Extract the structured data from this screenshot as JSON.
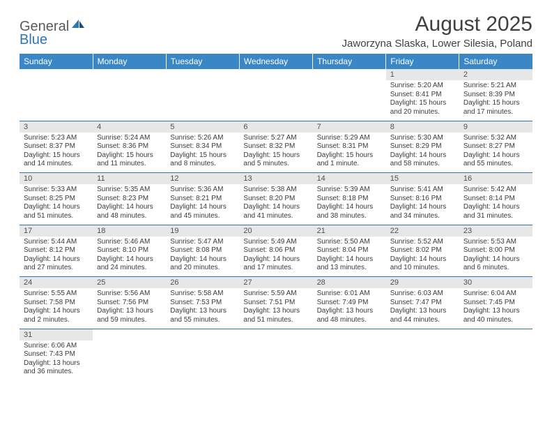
{
  "brand": {
    "general": "General",
    "blue": "Blue"
  },
  "title": "August 2025",
  "subtitle": "Jaworzyna Slaska, Lower Silesia, Poland",
  "colors": {
    "header_bg": "#3a87c8",
    "header_text": "#ffffff",
    "daynum_bg": "#e7e7e7",
    "border": "#2e75b6",
    "text": "#3a3a3a",
    "logo_general": "#5a5a5a",
    "logo_blue": "#2e75b6"
  },
  "dow": [
    "Sunday",
    "Monday",
    "Tuesday",
    "Wednesday",
    "Thursday",
    "Friday",
    "Saturday"
  ],
  "weeks": [
    [
      null,
      null,
      null,
      null,
      null,
      {
        "n": "1",
        "sr": "Sunrise: 5:20 AM",
        "ss": "Sunset: 8:41 PM",
        "d1": "Daylight: 15 hours",
        "d2": "and 20 minutes."
      },
      {
        "n": "2",
        "sr": "Sunrise: 5:21 AM",
        "ss": "Sunset: 8:39 PM",
        "d1": "Daylight: 15 hours",
        "d2": "and 17 minutes."
      }
    ],
    [
      {
        "n": "3",
        "sr": "Sunrise: 5:23 AM",
        "ss": "Sunset: 8:37 PM",
        "d1": "Daylight: 15 hours",
        "d2": "and 14 minutes."
      },
      {
        "n": "4",
        "sr": "Sunrise: 5:24 AM",
        "ss": "Sunset: 8:36 PM",
        "d1": "Daylight: 15 hours",
        "d2": "and 11 minutes."
      },
      {
        "n": "5",
        "sr": "Sunrise: 5:26 AM",
        "ss": "Sunset: 8:34 PM",
        "d1": "Daylight: 15 hours",
        "d2": "and 8 minutes."
      },
      {
        "n": "6",
        "sr": "Sunrise: 5:27 AM",
        "ss": "Sunset: 8:32 PM",
        "d1": "Daylight: 15 hours",
        "d2": "and 5 minutes."
      },
      {
        "n": "7",
        "sr": "Sunrise: 5:29 AM",
        "ss": "Sunset: 8:31 PM",
        "d1": "Daylight: 15 hours",
        "d2": "and 1 minute."
      },
      {
        "n": "8",
        "sr": "Sunrise: 5:30 AM",
        "ss": "Sunset: 8:29 PM",
        "d1": "Daylight: 14 hours",
        "d2": "and 58 minutes."
      },
      {
        "n": "9",
        "sr": "Sunrise: 5:32 AM",
        "ss": "Sunset: 8:27 PM",
        "d1": "Daylight: 14 hours",
        "d2": "and 55 minutes."
      }
    ],
    [
      {
        "n": "10",
        "sr": "Sunrise: 5:33 AM",
        "ss": "Sunset: 8:25 PM",
        "d1": "Daylight: 14 hours",
        "d2": "and 51 minutes."
      },
      {
        "n": "11",
        "sr": "Sunrise: 5:35 AM",
        "ss": "Sunset: 8:23 PM",
        "d1": "Daylight: 14 hours",
        "d2": "and 48 minutes."
      },
      {
        "n": "12",
        "sr": "Sunrise: 5:36 AM",
        "ss": "Sunset: 8:21 PM",
        "d1": "Daylight: 14 hours",
        "d2": "and 45 minutes."
      },
      {
        "n": "13",
        "sr": "Sunrise: 5:38 AM",
        "ss": "Sunset: 8:20 PM",
        "d1": "Daylight: 14 hours",
        "d2": "and 41 minutes."
      },
      {
        "n": "14",
        "sr": "Sunrise: 5:39 AM",
        "ss": "Sunset: 8:18 PM",
        "d1": "Daylight: 14 hours",
        "d2": "and 38 minutes."
      },
      {
        "n": "15",
        "sr": "Sunrise: 5:41 AM",
        "ss": "Sunset: 8:16 PM",
        "d1": "Daylight: 14 hours",
        "d2": "and 34 minutes."
      },
      {
        "n": "16",
        "sr": "Sunrise: 5:42 AM",
        "ss": "Sunset: 8:14 PM",
        "d1": "Daylight: 14 hours",
        "d2": "and 31 minutes."
      }
    ],
    [
      {
        "n": "17",
        "sr": "Sunrise: 5:44 AM",
        "ss": "Sunset: 8:12 PM",
        "d1": "Daylight: 14 hours",
        "d2": "and 27 minutes."
      },
      {
        "n": "18",
        "sr": "Sunrise: 5:46 AM",
        "ss": "Sunset: 8:10 PM",
        "d1": "Daylight: 14 hours",
        "d2": "and 24 minutes."
      },
      {
        "n": "19",
        "sr": "Sunrise: 5:47 AM",
        "ss": "Sunset: 8:08 PM",
        "d1": "Daylight: 14 hours",
        "d2": "and 20 minutes."
      },
      {
        "n": "20",
        "sr": "Sunrise: 5:49 AM",
        "ss": "Sunset: 8:06 PM",
        "d1": "Daylight: 14 hours",
        "d2": "and 17 minutes."
      },
      {
        "n": "21",
        "sr": "Sunrise: 5:50 AM",
        "ss": "Sunset: 8:04 PM",
        "d1": "Daylight: 14 hours",
        "d2": "and 13 minutes."
      },
      {
        "n": "22",
        "sr": "Sunrise: 5:52 AM",
        "ss": "Sunset: 8:02 PM",
        "d1": "Daylight: 14 hours",
        "d2": "and 10 minutes."
      },
      {
        "n": "23",
        "sr": "Sunrise: 5:53 AM",
        "ss": "Sunset: 8:00 PM",
        "d1": "Daylight: 14 hours",
        "d2": "and 6 minutes."
      }
    ],
    [
      {
        "n": "24",
        "sr": "Sunrise: 5:55 AM",
        "ss": "Sunset: 7:58 PM",
        "d1": "Daylight: 14 hours",
        "d2": "and 2 minutes."
      },
      {
        "n": "25",
        "sr": "Sunrise: 5:56 AM",
        "ss": "Sunset: 7:56 PM",
        "d1": "Daylight: 13 hours",
        "d2": "and 59 minutes."
      },
      {
        "n": "26",
        "sr": "Sunrise: 5:58 AM",
        "ss": "Sunset: 7:53 PM",
        "d1": "Daylight: 13 hours",
        "d2": "and 55 minutes."
      },
      {
        "n": "27",
        "sr": "Sunrise: 5:59 AM",
        "ss": "Sunset: 7:51 PM",
        "d1": "Daylight: 13 hours",
        "d2": "and 51 minutes."
      },
      {
        "n": "28",
        "sr": "Sunrise: 6:01 AM",
        "ss": "Sunset: 7:49 PM",
        "d1": "Daylight: 13 hours",
        "d2": "and 48 minutes."
      },
      {
        "n": "29",
        "sr": "Sunrise: 6:03 AM",
        "ss": "Sunset: 7:47 PM",
        "d1": "Daylight: 13 hours",
        "d2": "and 44 minutes."
      },
      {
        "n": "30",
        "sr": "Sunrise: 6:04 AM",
        "ss": "Sunset: 7:45 PM",
        "d1": "Daylight: 13 hours",
        "d2": "and 40 minutes."
      }
    ],
    [
      {
        "n": "31",
        "sr": "Sunrise: 6:06 AM",
        "ss": "Sunset: 7:43 PM",
        "d1": "Daylight: 13 hours",
        "d2": "and 36 minutes."
      },
      null,
      null,
      null,
      null,
      null,
      null
    ]
  ]
}
